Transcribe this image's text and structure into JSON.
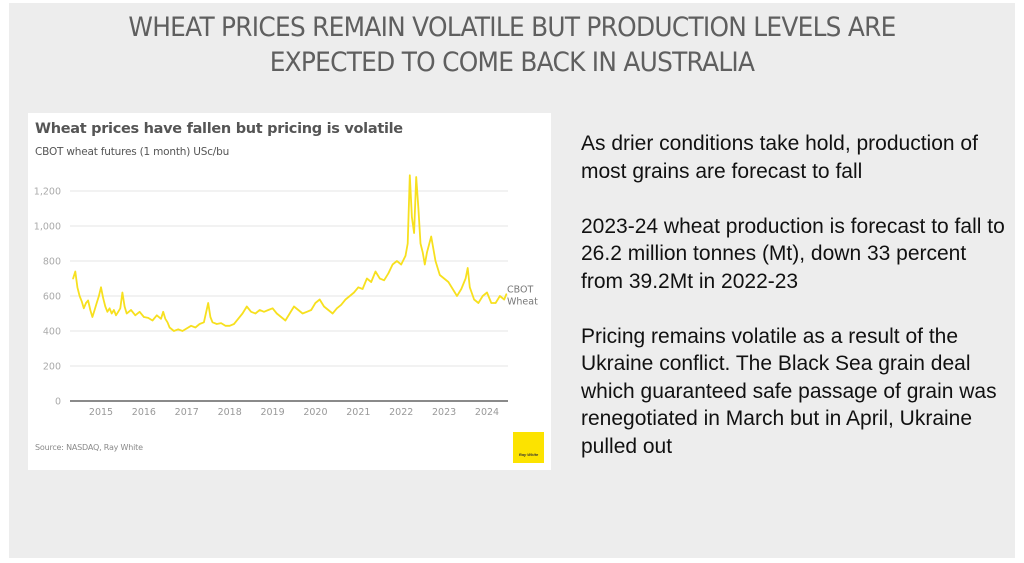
{
  "slide": {
    "title_line1": "WHEAT PRICES REMAIN VOLATILE BUT PRODUCTION LEVELS ARE",
    "title_line2": "EXPECTED TO COME BACK IN AUSTRALIA",
    "background_color": "#ededed"
  },
  "body": {
    "paragraphs": [
      "As drier conditions take hold, production of most grains are forecast to fall",
      "2023-24 wheat production is forecast to fall to 26.2 million tonnes (Mt), down 33 percent from 39.2Mt in 2022-23",
      "Pricing remains volatile as a result of the Ukraine conflict. The Black Sea grain deal which guaranteed safe passage of grain was renegotiated in March but in April, Ukraine pulled out"
    ]
  },
  "chart_card": {
    "source": "Source: NASDAQ, Ray White",
    "logo_text": "Ray White",
    "logo_color": "#fce300"
  },
  "chart_data": {
    "type": "line",
    "title": "Wheat prices have fallen but pricing is volatile",
    "subtitle": "CBOT wheat futures (1 month) USc/bu",
    "xlabel": "",
    "ylabel": "USc/bu",
    "ylim": [
      0,
      1300
    ],
    "xlim": [
      2014.3,
      2024.5
    ],
    "yticks": [
      0,
      200,
      400,
      600,
      800,
      1000,
      1200
    ],
    "ytick_labels": [
      "0",
      "200",
      "400",
      "600",
      "800",
      "1,000",
      "1,200"
    ],
    "xticks": [
      2015,
      2016,
      2017,
      2018,
      2019,
      2020,
      2021,
      2022,
      2023,
      2024
    ],
    "xtick_labels": [
      "2015",
      "2016",
      "2017",
      "2018",
      "2019",
      "2020",
      "2021",
      "2022",
      "2023",
      "2024"
    ],
    "grid": true,
    "legend": "right-end-label",
    "series": [
      {
        "name": "CBOT Wheat",
        "label_lines": [
          "CBOT",
          "Wheat"
        ],
        "color": "#f7e01f",
        "x": [
          2014.35,
          2014.4,
          2014.45,
          2014.5,
          2014.55,
          2014.6,
          2014.65,
          2014.7,
          2014.75,
          2014.8,
          2014.85,
          2014.9,
          2014.95,
          2015.0,
          2015.05,
          2015.1,
          2015.15,
          2015.2,
          2015.25,
          2015.3,
          2015.35,
          2015.4,
          2015.45,
          2015.5,
          2015.55,
          2015.6,
          2015.7,
          2015.8,
          2015.9,
          2016.0,
          2016.1,
          2016.2,
          2016.3,
          2016.4,
          2016.45,
          2016.5,
          2016.55,
          2016.6,
          2016.7,
          2016.8,
          2016.9,
          2017.0,
          2017.1,
          2017.2,
          2017.3,
          2017.4,
          2017.5,
          2017.55,
          2017.6,
          2017.7,
          2017.8,
          2017.9,
          2018.0,
          2018.1,
          2018.2,
          2018.3,
          2018.4,
          2018.5,
          2018.6,
          2018.7,
          2018.8,
          2018.9,
          2019.0,
          2019.1,
          2019.2,
          2019.3,
          2019.4,
          2019.5,
          2019.6,
          2019.7,
          2019.8,
          2019.9,
          2020.0,
          2020.1,
          2020.2,
          2020.3,
          2020.4,
          2020.5,
          2020.6,
          2020.7,
          2020.8,
          2020.9,
          2021.0,
          2021.1,
          2021.2,
          2021.3,
          2021.4,
          2021.5,
          2021.6,
          2021.7,
          2021.8,
          2021.9,
          2022.0,
          2022.1,
          2022.15,
          2022.2,
          2022.25,
          2022.3,
          2022.35,
          2022.4,
          2022.45,
          2022.5,
          2022.55,
          2022.6,
          2022.7,
          2022.8,
          2022.9,
          2023.0,
          2023.1,
          2023.2,
          2023.3,
          2023.4,
          2023.5,
          2023.55,
          2023.6,
          2023.7,
          2023.8,
          2023.9,
          2024.0,
          2024.1,
          2024.2,
          2024.3,
          2024.4,
          2024.45
        ],
        "values": [
          700,
          740,
          650,
          600,
          570,
          530,
          560,
          575,
          520,
          480,
          520,
          560,
          600,
          650,
          590,
          540,
          510,
          530,
          500,
          520,
          490,
          510,
          530,
          620,
          540,
          500,
          520,
          490,
          510,
          480,
          475,
          460,
          490,
          470,
          510,
          470,
          450,
          420,
          400,
          410,
          400,
          415,
          430,
          420,
          440,
          450,
          560,
          480,
          450,
          440,
          445,
          430,
          430,
          440,
          470,
          500,
          540,
          510,
          500,
          520,
          510,
          520,
          530,
          500,
          480,
          460,
          500,
          540,
          520,
          500,
          510,
          520,
          560,
          580,
          540,
          520,
          500,
          530,
          550,
          580,
          600,
          620,
          650,
          640,
          700,
          680,
          740,
          700,
          690,
          730,
          780,
          800,
          780,
          830,
          900,
          1290,
          1050,
          960,
          1280,
          1100,
          900,
          850,
          780,
          850,
          940,
          800,
          720,
          700,
          680,
          640,
          600,
          640,
          700,
          760,
          650,
          580,
          560,
          600,
          620,
          560,
          560,
          600,
          580,
          610
        ]
      }
    ]
  }
}
